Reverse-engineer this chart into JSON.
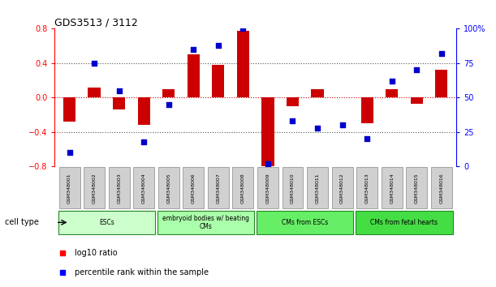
{
  "title": "GDS3513 / 3112",
  "samples": [
    "GSM348001",
    "GSM348002",
    "GSM348003",
    "GSM348004",
    "GSM348005",
    "GSM348006",
    "GSM348007",
    "GSM348008",
    "GSM348009",
    "GSM348010",
    "GSM348011",
    "GSM348012",
    "GSM348013",
    "GSM348014",
    "GSM348015",
    "GSM348016"
  ],
  "log10_ratio": [
    -0.28,
    0.12,
    -0.14,
    -0.32,
    0.1,
    0.5,
    0.38,
    0.78,
    -0.82,
    -0.1,
    0.1,
    0.0,
    -0.3,
    0.1,
    -0.07,
    0.32
  ],
  "percentile_rank": [
    10,
    75,
    55,
    18,
    45,
    85,
    88,
    100,
    2,
    33,
    28,
    30,
    20,
    62,
    70,
    82
  ],
  "ylim_left": [
    -0.8,
    0.8
  ],
  "ylim_right": [
    0,
    100
  ],
  "yticks_left": [
    -0.8,
    -0.4,
    0,
    0.4,
    0.8
  ],
  "yticks_right": [
    0,
    25,
    50,
    75,
    100
  ],
  "ytick_labels_right": [
    "0",
    "25",
    "50",
    "75",
    "100%"
  ],
  "bar_color": "#cc0000",
  "dot_color": "#0000cc",
  "hline_color": "#cc0000",
  "dotted_color": "#333333",
  "cell_types": [
    {
      "label": "ESCs",
      "start": 0,
      "end": 3,
      "color": "#aaffaa"
    },
    {
      "label": "embryoid bodies w/ beating\nCMs",
      "start": 4,
      "end": 7,
      "color": "#88ee88"
    },
    {
      "label": "CMs from ESCs",
      "start": 8,
      "end": 11,
      "color": "#55dd55"
    },
    {
      "label": "CMs from fetal hearts",
      "start": 12,
      "end": 15,
      "color": "#33cc33"
    }
  ],
  "legend_bar_label": "log10 ratio",
  "legend_dot_label": "percentile rank within the sample",
  "background_color": "#ffffff"
}
